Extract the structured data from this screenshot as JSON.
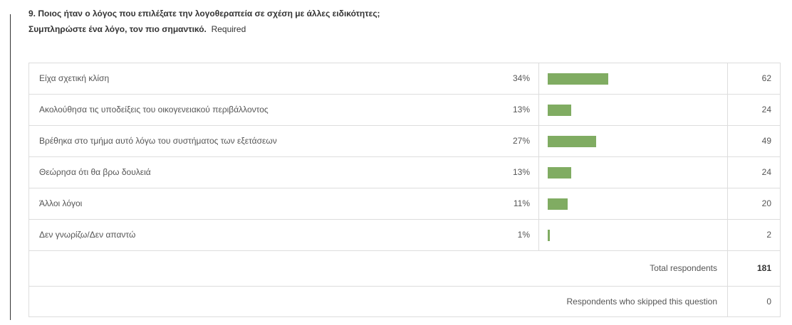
{
  "question": {
    "title": "9. Ποιος ήταν ο λόγος που επιλέξατε την λογοθεραπεία σε σχέση με άλλες ειδικότητες;",
    "instruction": "Συμπληρώστε ένα λόγο, τον πιο σημαντικό.",
    "required": "Required"
  },
  "table": {
    "bar_color": "#80ac62",
    "rows": [
      {
        "answer": "Είχα σχετική κλίση",
        "percent": {
          "value": 34,
          "label": "34%"
        },
        "count": 62
      },
      {
        "answer": "Ακολούθησα τις υποδείξεις του οικογενειακού περιβάλλοντος",
        "percent": {
          "value": 13,
          "label": "13%"
        },
        "count": 24
      },
      {
        "answer": "Βρέθηκα στο τμήμα αυτό λόγω του συστήματος των εξετάσεων",
        "percent": {
          "value": 27,
          "label": "27%"
        },
        "count": 49
      },
      {
        "answer": "Θεώρησα ότι θα βρω δουλειά",
        "percent": {
          "value": 13,
          "label": "13%"
        },
        "count": 24
      },
      {
        "answer": "Άλλοι λόγοι",
        "percent": {
          "value": 11,
          "label": "11%"
        },
        "count": 20
      },
      {
        "answer": "Δεν γνωρίζω/Δεν απαντώ",
        "percent": {
          "value": 1,
          "label": "1%"
        },
        "count": 2
      }
    ],
    "total": {
      "label": "Total respondents",
      "value": 181
    },
    "skipped": {
      "label": "Respondents who skipped this question",
      "value": 0
    }
  }
}
